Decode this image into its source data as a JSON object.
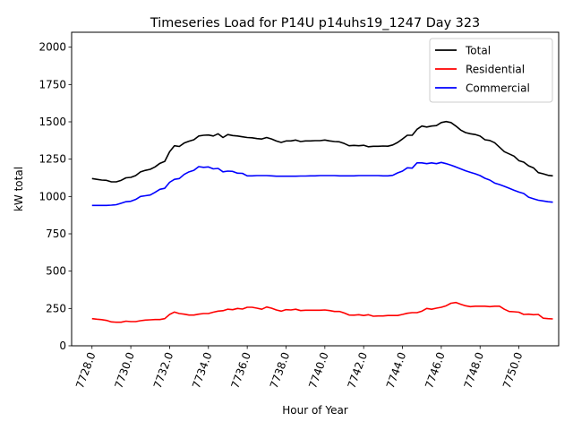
{
  "chart_data": {
    "type": "line",
    "title": "Timeseries Load for P14U p14uhs19_1247  Day 323",
    "xlabel": "Hour of Year",
    "ylabel": "kW total",
    "xlim": [
      7726.95,
      7752.05
    ],
    "ylim": [
      0,
      2100
    ],
    "x_ticks": [
      7728,
      7730,
      7732,
      7734,
      7736,
      7738,
      7740,
      7742,
      7744,
      7746,
      7748,
      7750
    ],
    "x_tick_labels": [
      "7728.0",
      "7730.0",
      "7732.0",
      "7734.0",
      "7736.0",
      "7738.0",
      "7740.0",
      "7742.0",
      "7744.0",
      "7746.0",
      "7748.0",
      "7750.0"
    ],
    "y_ticks": [
      0,
      250,
      500,
      750,
      1000,
      1250,
      1500,
      1750,
      2000
    ],
    "y_tick_labels": [
      "0",
      "250",
      "500",
      "750",
      "1000",
      "1250",
      "1500",
      "1750",
      "2000"
    ],
    "legend_position": "upper-right",
    "x": [
      7728,
      7728.25,
      7728.5,
      7728.75,
      7729,
      7729.25,
      7729.5,
      7729.75,
      7730,
      7730.25,
      7730.5,
      7730.75,
      7731,
      7731.25,
      7731.5,
      7731.75,
      7732,
      7732.25,
      7732.5,
      7732.75,
      7733,
      7733.25,
      7733.5,
      7733.75,
      7734,
      7734.25,
      7734.5,
      7734.75,
      7735,
      7735.25,
      7735.5,
      7735.75,
      7736,
      7736.25,
      7736.5,
      7736.75,
      7737,
      7737.25,
      7737.5,
      7737.75,
      7738,
      7738.25,
      7738.5,
      7738.75,
      7739,
      7739.25,
      7739.5,
      7739.75,
      7740,
      7740.25,
      7740.5,
      7740.75,
      7741,
      7741.25,
      7741.5,
      7741.75,
      7742,
      7742.25,
      7742.5,
      7742.75,
      7743,
      7743.25,
      7743.5,
      7743.75,
      7744,
      7744.25,
      7744.5,
      7744.75,
      7745,
      7745.25,
      7745.5,
      7745.75,
      7746,
      7746.25,
      7746.5,
      7746.75,
      7747,
      7747.25,
      7747.5,
      7747.75,
      7748,
      7748.25,
      7748.5,
      7748.75,
      7749,
      7749.25,
      7749.5,
      7749.75,
      7750,
      7750.25,
      7750.5,
      7750.75,
      7751,
      7751.25,
      7751.5,
      7751.75
    ],
    "series": [
      {
        "name": "Total",
        "color": "#000000",
        "values": [
          1120,
          1115,
          1110,
          1108,
          1098,
          1098,
          1108,
          1125,
          1128,
          1140,
          1165,
          1175,
          1182,
          1198,
          1222,
          1235,
          1300,
          1340,
          1335,
          1358,
          1370,
          1380,
          1405,
          1410,
          1412,
          1405,
          1420,
          1395,
          1415,
          1408,
          1405,
          1400,
          1395,
          1393,
          1388,
          1385,
          1395,
          1385,
          1372,
          1362,
          1372,
          1372,
          1378,
          1368,
          1372,
          1372,
          1374,
          1374,
          1378,
          1372,
          1368,
          1366,
          1355,
          1340,
          1342,
          1340,
          1343,
          1333,
          1336,
          1336,
          1338,
          1337,
          1345,
          1362,
          1385,
          1410,
          1410,
          1450,
          1472,
          1465,
          1472,
          1475,
          1495,
          1502,
          1495,
          1472,
          1445,
          1428,
          1420,
          1415,
          1405,
          1380,
          1375,
          1360,
          1330,
          1300,
          1285,
          1270,
          1240,
          1230,
          1205,
          1192,
          1160,
          1152,
          1142,
          1138
        ]
      },
      {
        "name": "Residential",
        "color": "#ff0000",
        "values": [
          182,
          178,
          175,
          170,
          160,
          158,
          158,
          165,
          162,
          162,
          168,
          172,
          174,
          176,
          176,
          182,
          210,
          226,
          216,
          212,
          206,
          206,
          212,
          216,
          216,
          225,
          232,
          235,
          245,
          242,
          250,
          246,
          258,
          258,
          252,
          245,
          260,
          252,
          240,
          232,
          242,
          240,
          245,
          236,
          238,
          238,
          238,
          238,
          240,
          236,
          230,
          230,
          220,
          206,
          205,
          208,
          203,
          208,
          198,
          200,
          200,
          203,
          203,
          203,
          210,
          218,
          222,
          222,
          232,
          250,
          245,
          252,
          258,
          268,
          285,
          290,
          278,
          268,
          262,
          265,
          265,
          265,
          262,
          265,
          265,
          245,
          230,
          228,
          225,
          210,
          212,
          208,
          210,
          185,
          182,
          180
        ]
      },
      {
        "name": "Commercial",
        "color": "#0000ff",
        "values": [
          940,
          940,
          940,
          940,
          942,
          945,
          955,
          965,
          968,
          980,
          1000,
          1005,
          1010,
          1028,
          1048,
          1055,
          1095,
          1115,
          1120,
          1148,
          1165,
          1175,
          1200,
          1195,
          1198,
          1185,
          1188,
          1165,
          1170,
          1168,
          1156,
          1155,
          1138,
          1138,
          1140,
          1140,
          1140,
          1138,
          1136,
          1136,
          1136,
          1136,
          1136,
          1137,
          1137,
          1138,
          1138,
          1140,
          1140,
          1140,
          1140,
          1138,
          1138,
          1138,
          1138,
          1140,
          1140,
          1140,
          1140,
          1140,
          1138,
          1138,
          1142,
          1158,
          1170,
          1192,
          1190,
          1225,
          1225,
          1220,
          1225,
          1220,
          1228,
          1220,
          1210,
          1198,
          1185,
          1172,
          1162,
          1152,
          1140,
          1122,
          1110,
          1090,
          1080,
          1068,
          1055,
          1042,
          1030,
          1020,
          995,
          985,
          975,
          970,
          965,
          962
        ]
      }
    ]
  }
}
